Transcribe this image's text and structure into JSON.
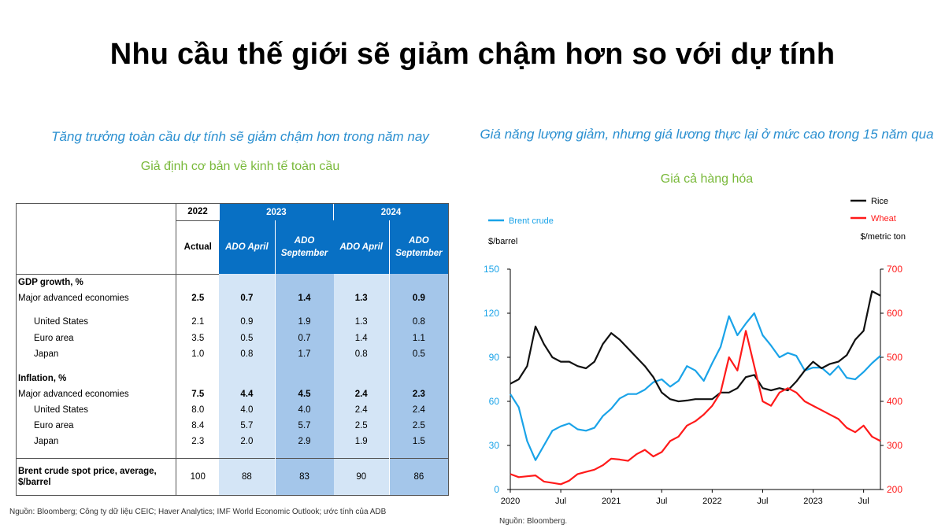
{
  "title": "Nhu cầu thế giới sẽ giảm chậm hơn so với dự tính",
  "left": {
    "subtitle": "Tăng trưởng toàn cầu dự tính sẽ giảm chậm hơn trong năm nay",
    "caption": "Giả định cơ bản về kinh tế toàn cầu",
    "source": "Nguồn: Bloomberg; Công ty dữ liệu CEIC; Haver Analytics; IMF World Economic Outlook; ước tính của ADB",
    "table": {
      "year_2022": "2022",
      "year_2023": "2023",
      "year_2024": "2024",
      "actual": "Actual",
      "ado_april": "ADO April",
      "ado_september": "ADO September",
      "sections": [
        {
          "heading": "GDP growth, %",
          "rows": [
            {
              "label": "Major advanced economies",
              "bold": true,
              "values": [
                "2.5",
                "0.7",
                "1.4",
                "1.3",
                "0.9"
              ]
            },
            {
              "label": "United States",
              "values": [
                "2.1",
                "0.9",
                "1.9",
                "1.3",
                "0.8"
              ]
            },
            {
              "label": "Euro area",
              "values": [
                "3.5",
                "0.5",
                "0.7",
                "1.4",
                "1.1"
              ]
            },
            {
              "label": "Japan",
              "values": [
                "1.0",
                "0.8",
                "1.7",
                "0.8",
                "0.5"
              ]
            }
          ]
        },
        {
          "heading": "Inflation, %",
          "rows": [
            {
              "label": "Major advanced economies",
              "bold": true,
              "values": [
                "7.5",
                "4.4",
                "4.5",
                "2.4",
                "2.3"
              ]
            },
            {
              "label": "United States",
              "values": [
                "8.0",
                "4.0",
                "4.0",
                "2.4",
                "2.4"
              ]
            },
            {
              "label": "Euro area",
              "values": [
                "8.4",
                "5.7",
                "5.7",
                "2.5",
                "2.5"
              ]
            },
            {
              "label": "Japan",
              "values": [
                "2.3",
                "2.0",
                "2.9",
                "1.9",
                "1.5"
              ]
            }
          ]
        }
      ],
      "brent": {
        "label": "Brent crude spot price, average, $/barrel",
        "values": [
          "100",
          "88",
          "83",
          "90",
          "86"
        ]
      }
    }
  },
  "right": {
    "subtitle": "Giá năng lượng giảm, nhưng giá lương thực lại ở mức cao trong 15 năm qua",
    "caption": "Giá cả hàng hóa",
    "source": "Nguồn: Bloomberg."
  },
  "chart_data": {
    "type": "line",
    "left_axis_label": "$/barrel",
    "right_axis_label": "$/metric ton",
    "left_ylim": [
      0,
      150
    ],
    "left_ticks": [
      0,
      30,
      60,
      90,
      120,
      150
    ],
    "right_ylim": [
      200,
      700
    ],
    "right_ticks": [
      200,
      300,
      400,
      500,
      600,
      700
    ],
    "xlim": [
      "2020-01",
      "2023-09"
    ],
    "x_tick_labels": [
      {
        "label": "2020",
        "date": "2020-01"
      },
      {
        "label": "Jul",
        "date": "2020-07"
      },
      {
        "label": "2021",
        "date": "2021-01"
      },
      {
        "label": "Jul",
        "date": "2021-07"
      },
      {
        "label": "2022",
        "date": "2022-01"
      },
      {
        "label": "Jul",
        "date": "2022-07"
      },
      {
        "label": "2023",
        "date": "2023-01"
      },
      {
        "label": "Jul",
        "date": "2023-07"
      }
    ],
    "colors": {
      "brent": "#1aa3e8",
      "rice": "#111111",
      "wheat": "#ff1a1a"
    },
    "series": [
      {
        "name": "Brent crude",
        "axis": "left",
        "points": [
          [
            "2020-01",
            65
          ],
          [
            "2020-02",
            56
          ],
          [
            "2020-03",
            33
          ],
          [
            "2020-04",
            20
          ],
          [
            "2020-05",
            30
          ],
          [
            "2020-06",
            40
          ],
          [
            "2020-07",
            43
          ],
          [
            "2020-08",
            45
          ],
          [
            "2020-09",
            41
          ],
          [
            "2020-10",
            40
          ],
          [
            "2020-11",
            42
          ],
          [
            "2020-12",
            50
          ],
          [
            "2021-01",
            55
          ],
          [
            "2021-02",
            62
          ],
          [
            "2021-03",
            65
          ],
          [
            "2021-04",
            65
          ],
          [
            "2021-05",
            68
          ],
          [
            "2021-06",
            73
          ],
          [
            "2021-07",
            75
          ],
          [
            "2021-08",
            70
          ],
          [
            "2021-09",
            74
          ],
          [
            "2021-10",
            84
          ],
          [
            "2021-11",
            81
          ],
          [
            "2021-12",
            74
          ],
          [
            "2022-01",
            86
          ],
          [
            "2022-02",
            97
          ],
          [
            "2022-03",
            118
          ],
          [
            "2022-04",
            105
          ],
          [
            "2022-05",
            113
          ],
          [
            "2022-06",
            120
          ],
          [
            "2022-07",
            105
          ],
          [
            "2022-08",
            98
          ],
          [
            "2022-09",
            90
          ],
          [
            "2022-10",
            93
          ],
          [
            "2022-11",
            91
          ],
          [
            "2022-12",
            81
          ],
          [
            "2023-01",
            83
          ],
          [
            "2023-02",
            83
          ],
          [
            "2023-03",
            78
          ],
          [
            "2023-04",
            84
          ],
          [
            "2023-05",
            76
          ],
          [
            "2023-06",
            75
          ],
          [
            "2023-07",
            80
          ],
          [
            "2023-08",
            86
          ],
          [
            "2023-09",
            91
          ]
        ]
      },
      {
        "name": "Rice",
        "axis": "right",
        "points": [
          [
            "2020-01",
            440
          ],
          [
            "2020-02",
            450
          ],
          [
            "2020-03",
            480
          ],
          [
            "2020-04",
            570
          ],
          [
            "2020-05",
            530
          ],
          [
            "2020-06",
            500
          ],
          [
            "2020-07",
            490
          ],
          [
            "2020-08",
            490
          ],
          [
            "2020-09",
            480
          ],
          [
            "2020-10",
            475
          ],
          [
            "2020-11",
            490
          ],
          [
            "2020-12",
            530
          ],
          [
            "2021-01",
            555
          ],
          [
            "2021-02",
            540
          ],
          [
            "2021-03",
            520
          ],
          [
            "2021-04",
            500
          ],
          [
            "2021-05",
            480
          ],
          [
            "2021-06",
            455
          ],
          [
            "2021-07",
            420
          ],
          [
            "2021-08",
            405
          ],
          [
            "2021-09",
            400
          ],
          [
            "2021-10",
            402
          ],
          [
            "2021-11",
            405
          ],
          [
            "2021-12",
            405
          ],
          [
            "2022-01",
            405
          ],
          [
            "2022-02",
            420
          ],
          [
            "2022-03",
            420
          ],
          [
            "2022-04",
            430
          ],
          [
            "2022-05",
            455
          ],
          [
            "2022-06",
            460
          ],
          [
            "2022-07",
            430
          ],
          [
            "2022-08",
            425
          ],
          [
            "2022-09",
            430
          ],
          [
            "2022-10",
            425
          ],
          [
            "2022-11",
            445
          ],
          [
            "2022-12",
            470
          ],
          [
            "2023-01",
            490
          ],
          [
            "2023-02",
            475
          ],
          [
            "2023-03",
            485
          ],
          [
            "2023-04",
            490
          ],
          [
            "2023-05",
            505
          ],
          [
            "2023-06",
            540
          ],
          [
            "2023-07",
            560
          ],
          [
            "2023-08",
            650
          ],
          [
            "2023-09",
            640
          ]
        ]
      },
      {
        "name": "Wheat",
        "axis": "right",
        "points": [
          [
            "2020-01",
            235
          ],
          [
            "2020-02",
            228
          ],
          [
            "2020-03",
            230
          ],
          [
            "2020-04",
            232
          ],
          [
            "2020-05",
            218
          ],
          [
            "2020-06",
            215
          ],
          [
            "2020-07",
            212
          ],
          [
            "2020-08",
            220
          ],
          [
            "2020-09",
            235
          ],
          [
            "2020-10",
            240
          ],
          [
            "2020-11",
            245
          ],
          [
            "2020-12",
            255
          ],
          [
            "2021-01",
            270
          ],
          [
            "2021-02",
            268
          ],
          [
            "2021-03",
            265
          ],
          [
            "2021-04",
            280
          ],
          [
            "2021-05",
            290
          ],
          [
            "2021-06",
            275
          ],
          [
            "2021-07",
            285
          ],
          [
            "2021-08",
            310
          ],
          [
            "2021-09",
            320
          ],
          [
            "2021-10",
            345
          ],
          [
            "2021-11",
            355
          ],
          [
            "2021-12",
            370
          ],
          [
            "2022-01",
            390
          ],
          [
            "2022-02",
            420
          ],
          [
            "2022-03",
            500
          ],
          [
            "2022-04",
            470
          ],
          [
            "2022-05",
            560
          ],
          [
            "2022-06",
            480
          ],
          [
            "2022-07",
            400
          ],
          [
            "2022-08",
            390
          ],
          [
            "2022-09",
            420
          ],
          [
            "2022-10",
            430
          ],
          [
            "2022-11",
            420
          ],
          [
            "2022-12",
            400
          ],
          [
            "2023-01",
            390
          ],
          [
            "2023-02",
            380
          ],
          [
            "2023-03",
            370
          ],
          [
            "2023-04",
            360
          ],
          [
            "2023-05",
            340
          ],
          [
            "2023-06",
            330
          ],
          [
            "2023-07",
            345
          ],
          [
            "2023-08",
            320
          ],
          [
            "2023-09",
            310
          ]
        ]
      }
    ]
  }
}
